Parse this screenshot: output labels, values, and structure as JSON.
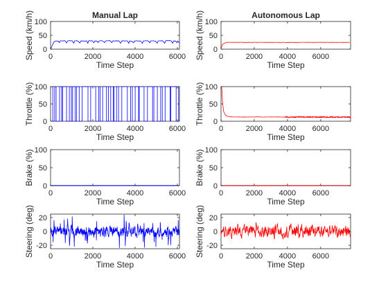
{
  "chart_data": [
    {
      "type": "line",
      "title": "Manual Lap",
      "ylabel": "Speed (km/h)",
      "xlabel": "Time Step",
      "xlim": [
        0,
        6100
      ],
      "ylim": [
        0,
        100
      ],
      "xticks": [
        0,
        2000,
        4000,
        6000
      ],
      "yticks": [
        0,
        50,
        100
      ],
      "series": [
        {
          "color": "#0000ff",
          "pattern": "speed_manual",
          "x": [
            0,
            6100
          ],
          "y": [
            0,
            32
          ]
        }
      ]
    },
    {
      "type": "line",
      "title": "Autonomous Lap",
      "ylabel": "Speed (km/h)",
      "xlabel": "Time Step",
      "xlim": [
        0,
        7800
      ],
      "ylim": [
        0,
        100
      ],
      "xticks": [
        0,
        2000,
        4000,
        6000
      ],
      "yticks": [
        0,
        50,
        100
      ],
      "series": [
        {
          "color": "#ff0000",
          "pattern": "speed_auto",
          "x": [
            0,
            7800
          ],
          "y": [
            0,
            25
          ]
        }
      ]
    },
    {
      "type": "line",
      "title": "",
      "ylabel": "Throttle (%)",
      "xlabel": "Time Step",
      "xlim": [
        0,
        6100
      ],
      "ylim": [
        0,
        100
      ],
      "xticks": [
        0,
        2000,
        4000,
        6000
      ],
      "yticks": [
        0,
        50,
        100
      ],
      "series": [
        {
          "color": "#0000ff",
          "pattern": "throttle_manual",
          "x": [
            0,
            6100
          ],
          "y": [
            0,
            100
          ]
        }
      ]
    },
    {
      "type": "line",
      "title": "",
      "ylabel": "Throttle (%)",
      "xlabel": "Time Step",
      "xlim": [
        0,
        7800
      ],
      "ylim": [
        0,
        100
      ],
      "xticks": [
        0,
        2000,
        4000,
        6000
      ],
      "yticks": [
        0,
        50,
        100
      ],
      "series": [
        {
          "color": "#ff0000",
          "pattern": "throttle_auto",
          "x": [
            0,
            7800
          ],
          "y": [
            12,
            100
          ]
        }
      ]
    },
    {
      "type": "line",
      "title": "",
      "ylabel": "Brake (%)",
      "xlabel": "Time Step",
      "xlim": [
        0,
        6100
      ],
      "ylim": [
        0,
        100
      ],
      "xticks": [
        0,
        2000,
        4000,
        6000
      ],
      "yticks": [
        0,
        50,
        100
      ],
      "series": [
        {
          "color": "#0000ff",
          "pattern": "flat",
          "x": [
            0,
            6100
          ],
          "y": [
            0,
            0
          ]
        }
      ]
    },
    {
      "type": "line",
      "title": "",
      "ylabel": "Brake (%)",
      "xlabel": "Time Step",
      "xlim": [
        0,
        7800
      ],
      "ylim": [
        0,
        100
      ],
      "xticks": [
        0,
        2000,
        4000,
        6000
      ],
      "yticks": [
        0,
        50,
        100
      ],
      "series": [
        {
          "color": "#ff0000",
          "pattern": "flat",
          "x": [
            0,
            7800
          ],
          "y": [
            0,
            0
          ]
        }
      ]
    },
    {
      "type": "line",
      "title": "",
      "ylabel": "Steering (deg)",
      "xlabel": "Time Step",
      "xlim": [
        0,
        6100
      ],
      "ylim": [
        -25,
        25
      ],
      "xticks": [
        0,
        2000,
        4000,
        6000
      ],
      "yticks": [
        -20,
        0,
        20
      ],
      "series": [
        {
          "color": "#0000ff",
          "pattern": "steer_manual",
          "x": [
            0,
            6100
          ],
          "y": [
            -25,
            25
          ]
        }
      ]
    },
    {
      "type": "line",
      "title": "",
      "ylabel": "Steering (deg)",
      "xlabel": "Time Step",
      "xlim": [
        0,
        7800
      ],
      "ylim": [
        -25,
        25
      ],
      "xticks": [
        0,
        2000,
        4000,
        6000
      ],
      "yticks": [
        -20,
        0,
        20
      ],
      "series": [
        {
          "color": "#ff0000",
          "pattern": "steer_auto",
          "x": [
            0,
            7800
          ],
          "y": [
            -16,
            13
          ]
        }
      ]
    }
  ]
}
